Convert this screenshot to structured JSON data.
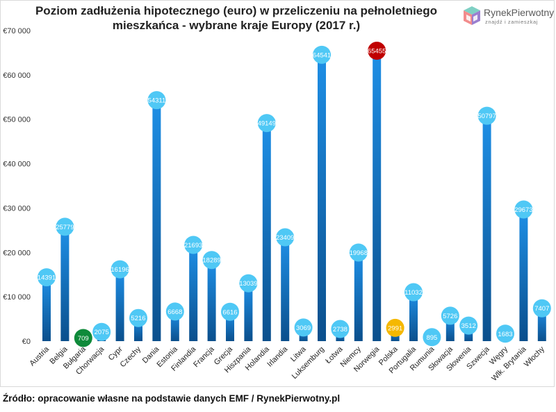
{
  "chart_data": {
    "type": "bar",
    "title": "Poziom zadłużenia hipotecznego (euro) w przeliczeniu na pełnoletniego",
    "title_line2": "mieszkańca - wybrane kraje Europy (2017 r.)",
    "xlabel": "",
    "ylabel": "",
    "ylim": [
      0,
      70000
    ],
    "y_ticks": [
      0,
      10000,
      20000,
      30000,
      40000,
      50000,
      60000,
      70000
    ],
    "y_tick_labels": [
      "€0",
      "€10 000",
      "€20 000",
      "€30 000",
      "€40 000",
      "€50 000",
      "€60 000",
      "€70 000"
    ],
    "grid": false,
    "categories": [
      "Austria",
      "Belgia",
      "Bułgaria",
      "Chorwacja",
      "Cypr",
      "Czechy",
      "Dania",
      "Estonia",
      "Finlandia",
      "Francja",
      "Grecja",
      "Hiszpania",
      "Holandia",
      "Irlandia",
      "Litwa",
      "Luksemburg",
      "Łotwa",
      "Niemcy",
      "Norwegia",
      "Polska",
      "Portugalia",
      "Rumunia",
      "Słowacja",
      "Słowenia",
      "Szwecja",
      "Węgry",
      "Wlk. Brytania",
      "Włochy"
    ],
    "values": [
      14391,
      25779,
      709,
      2075,
      16196,
      5216,
      54311,
      6668,
      21693,
      18289,
      6616,
      13039,
      49149,
      23409,
      3069,
      64541,
      2738,
      19968,
      65455,
      2991,
      11032,
      895,
      5726,
      3512,
      50797,
      1683,
      29673,
      7407
    ],
    "highlights": {
      "Bułgaria": "lowest",
      "Norwegia": "highest",
      "Polska": "poland"
    },
    "colors": {
      "bar_top": "#1e8fe6",
      "bar_bottom": "#0b4f8c",
      "marker": "#4fc8f5",
      "lowest": "#0f8a3a",
      "highest": "#c00000",
      "poland": "#f5b800",
      "marker_text": "#ffffff"
    }
  },
  "logo": {
    "name": "RynekPierwotny",
    "tagline": "znajdź i zamieszkaj"
  },
  "source": "Źródło: opracowanie własne na podstawie danych EMF / RynekPierwotny.pl"
}
